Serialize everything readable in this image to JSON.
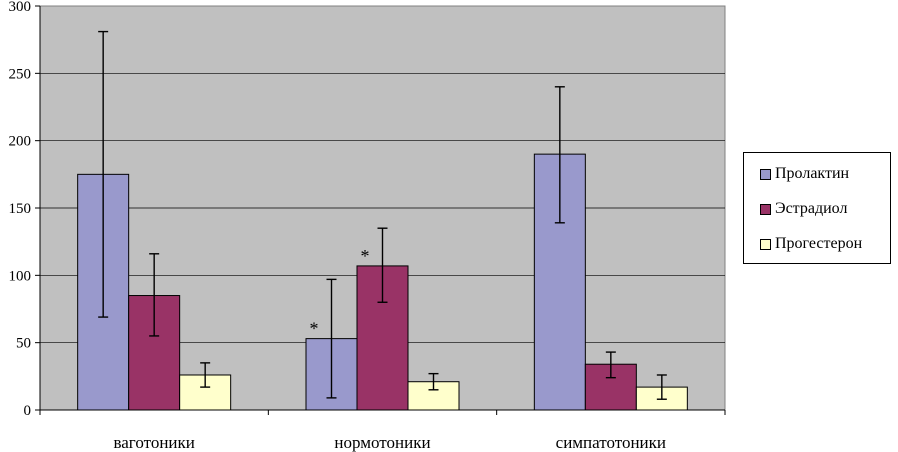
{
  "chart_data": {
    "type": "bar",
    "title": "",
    "xlabel": "",
    "ylabel": "",
    "ylim": [
      0,
      300
    ],
    "yticks": [
      0,
      50,
      100,
      150,
      200,
      250,
      300
    ],
    "grid": true,
    "legend_position": "right",
    "categories": [
      "ваготоники",
      "нормотоники",
      "симпатотоники"
    ],
    "series": [
      {
        "name": "Пролактин",
        "color": "#9999cc",
        "values": [
          175,
          53,
          190
        ],
        "error_low": [
          69,
          9,
          139
        ],
        "error_high": [
          281,
          97,
          240
        ],
        "markers": [
          "",
          "*",
          ""
        ]
      },
      {
        "name": "Эстрадиол",
        "color": "#993366",
        "values": [
          85,
          107,
          34
        ],
        "error_low": [
          55,
          80,
          24
        ],
        "error_high": [
          116,
          135,
          43
        ],
        "markers": [
          "",
          "*",
          ""
        ]
      },
      {
        "name": "Прогестерон",
        "color": "#ffffcc",
        "values": [
          26,
          21,
          17
        ],
        "error_low": [
          17,
          15,
          8
        ],
        "error_high": [
          35,
          27,
          26
        ],
        "markers": [
          "",
          "",
          ""
        ]
      }
    ]
  }
}
